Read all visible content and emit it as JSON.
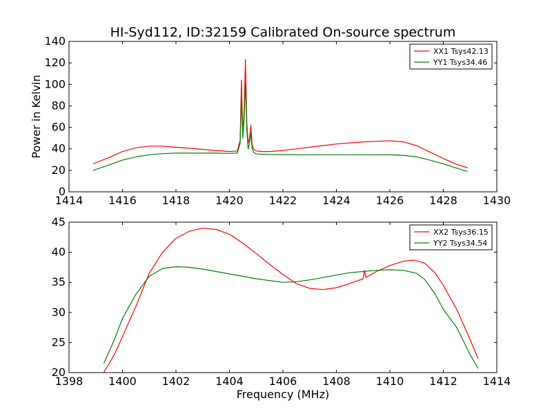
{
  "page_title": "HI-Syd112, ID:32159 Calibrated On-source spectrum",
  "chart_data": [
    {
      "type": "line",
      "title": "HI-Syd112, ID:32159 Calibrated On-source spectrum",
      "xlabel": "",
      "ylabel": "Power in Kelvin",
      "xlim": [
        1414,
        1430
      ],
      "ylim": [
        0,
        140
      ],
      "xticks": [
        1414,
        1416,
        1418,
        1420,
        1422,
        1424,
        1426,
        1428,
        1430
      ],
      "yticks": [
        0,
        20,
        40,
        60,
        80,
        100,
        120,
        140
      ],
      "grid": false,
      "legend_position": "top-right",
      "series": [
        {
          "name": "XX1 Tsys42.13",
          "color": "#ff0000",
          "x": [
            1414.9,
            1415.5,
            1416.0,
            1416.5,
            1417.0,
            1417.5,
            1418.0,
            1418.5,
            1419.0,
            1419.5,
            1420.0,
            1420.3,
            1420.4,
            1420.45,
            1420.5,
            1420.55,
            1420.6,
            1420.65,
            1420.7,
            1420.75,
            1420.8,
            1420.85,
            1420.9,
            1420.95,
            1421.0,
            1421.2,
            1421.5,
            1422.0,
            1422.5,
            1423.0,
            1423.5,
            1424.0,
            1424.5,
            1425.0,
            1425.5,
            1426.0,
            1426.5,
            1427.0,
            1427.5,
            1428.0,
            1428.5,
            1428.9
          ],
          "y": [
            26,
            32,
            37.5,
            41,
            42.5,
            42.5,
            41.5,
            40.5,
            39.5,
            38.5,
            37.5,
            38,
            48,
            104,
            55,
            75,
            123,
            65,
            45,
            50,
            62,
            44,
            40,
            39,
            38,
            37.5,
            37.5,
            38.5,
            40,
            41.5,
            43,
            44.5,
            45.5,
            46.5,
            47,
            47.5,
            46.5,
            43,
            37,
            31,
            25.5,
            22.5
          ]
        },
        {
          "name": "YY1 Tsys34.46",
          "color": "#008000",
          "x": [
            1414.9,
            1415.5,
            1416.0,
            1416.5,
            1417.0,
            1417.5,
            1418.0,
            1418.5,
            1419.0,
            1419.5,
            1420.0,
            1420.3,
            1420.4,
            1420.45,
            1420.5,
            1420.55,
            1420.6,
            1420.65,
            1420.7,
            1420.75,
            1420.8,
            1420.85,
            1420.9,
            1420.95,
            1421.0,
            1421.2,
            1421.5,
            1422.0,
            1422.5,
            1423.0,
            1423.5,
            1424.0,
            1424.5,
            1425.0,
            1425.5,
            1426.0,
            1426.5,
            1427.0,
            1427.5,
            1428.0,
            1428.5,
            1428.9
          ],
          "y": [
            20,
            25,
            29.5,
            32.5,
            34.5,
            35.5,
            36,
            36,
            36,
            36,
            35.8,
            36,
            45,
            87,
            50,
            68,
            101,
            58,
            40,
            45,
            55,
            40,
            37,
            36,
            35.2,
            35,
            34.8,
            34.6,
            34.5,
            34.5,
            34.5,
            34.5,
            34.5,
            34.5,
            34.5,
            34.4,
            34,
            32.5,
            29.5,
            26,
            22,
            19
          ]
        }
      ]
    },
    {
      "type": "line",
      "title": "",
      "xlabel": "Frequency (MHz)",
      "ylabel": "",
      "xlim": [
        1398,
        1414
      ],
      "ylim": [
        20,
        45
      ],
      "xticks": [
        1398,
        1400,
        1402,
        1404,
        1406,
        1408,
        1410,
        1412,
        1414
      ],
      "yticks": [
        20,
        25,
        30,
        35,
        40,
        45
      ],
      "grid": false,
      "legend_position": "top-right",
      "series": [
        {
          "name": "XX2 Tsys36.15",
          "color": "#ff0000",
          "x": [
            1399.3,
            1399.7,
            1400.0,
            1400.5,
            1401.0,
            1401.5,
            1402.0,
            1402.5,
            1403.0,
            1403.5,
            1404.0,
            1404.5,
            1405.0,
            1405.5,
            1406.0,
            1406.5,
            1407.0,
            1407.5,
            1408.0,
            1408.5,
            1409.0,
            1409.05,
            1409.1,
            1409.5,
            1410.0,
            1410.5,
            1410.9,
            1411.3,
            1411.7,
            1412.0,
            1412.5,
            1413.0,
            1413.3
          ],
          "y": [
            20,
            23,
            26,
            31,
            36.5,
            40,
            42.3,
            43.5,
            44,
            43.8,
            43,
            41.5,
            39.8,
            38,
            36.3,
            34.8,
            34,
            33.8,
            34.1,
            34.8,
            35.6,
            37,
            35.8,
            36.8,
            37.8,
            38.5,
            38.7,
            38.2,
            36.5,
            34.5,
            30.5,
            25.5,
            22.3
          ]
        },
        {
          "name": "YY2 Tsys34.54",
          "color": "#008000",
          "x": [
            1399.3,
            1399.7,
            1400.0,
            1400.5,
            1401.0,
            1401.5,
            1402.0,
            1402.5,
            1403.0,
            1403.5,
            1404.0,
            1404.5,
            1405.0,
            1405.5,
            1406.0,
            1406.5,
            1407.0,
            1407.5,
            1408.0,
            1408.5,
            1409.0,
            1409.5,
            1410.0,
            1410.5,
            1411.0,
            1411.3,
            1411.7,
            1412.0,
            1412.5,
            1413.0,
            1413.3
          ],
          "y": [
            21.5,
            25.5,
            29,
            33,
            36,
            37.3,
            37.6,
            37.5,
            37.2,
            36.8,
            36.4,
            36,
            35.6,
            35.3,
            35,
            35.1,
            35.4,
            35.8,
            36.2,
            36.6,
            36.8,
            37,
            37.1,
            37,
            36.5,
            35.5,
            33,
            30.5,
            27.5,
            23,
            20.7
          ]
        }
      ]
    }
  ]
}
